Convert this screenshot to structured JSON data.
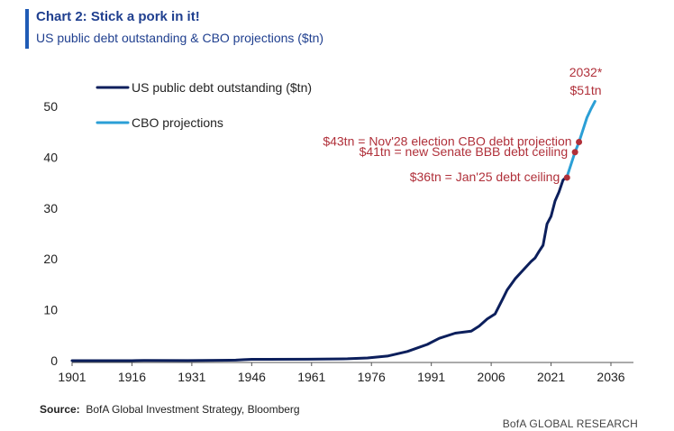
{
  "header": {
    "title": "Chart 2: Stick a pork in it!",
    "subtitle": "US public debt outstanding & CBO projections ($tn)"
  },
  "source": {
    "label": "Source:",
    "text": "BofA Global Investment Strategy, Bloomberg"
  },
  "footer": {
    "brand": "BofA GLOBAL RESEARCH"
  },
  "colors": {
    "actual": "#0c1f5c",
    "projection": "#2b9fd6",
    "annotation": "#b0303a",
    "axis": "#555555",
    "title": "#1f3f8f"
  },
  "chart_data": {
    "type": "line",
    "title": "Chart 2: Stick a pork in it!",
    "subtitle": "US public debt outstanding & CBO projections ($tn)",
    "xlim": [
      1901,
      2048
    ],
    "ylim": [
      0,
      55
    ],
    "x_ticks": [
      1901,
      1916,
      1931,
      1946,
      1961,
      1976,
      1991,
      2006,
      2021,
      2036
    ],
    "y_ticks": [
      0,
      10,
      20,
      30,
      40,
      50
    ],
    "grid": false,
    "legend_position": "top-left",
    "series": [
      {
        "name": "US public debt outstanding ($tn)",
        "color": "#0c1f5c",
        "x": [
          1901,
          1916,
          1917,
          1919,
          1930,
          1942,
          1944,
          1946,
          1950,
          1960,
          1970,
          1975,
          1980,
          1985,
          1990,
          1993,
          1997,
          2001,
          2003,
          2005,
          2007,
          2009,
          2010,
          2012,
          2014,
          2016,
          2017,
          2018,
          2019,
          2020,
          2021,
          2022,
          2023,
          2024,
          2025
        ],
        "y": [
          0.0,
          0.0,
          0.02,
          0.03,
          0.02,
          0.1,
          0.2,
          0.27,
          0.26,
          0.29,
          0.38,
          0.54,
          0.9,
          1.8,
          3.2,
          4.4,
          5.4,
          5.8,
          6.8,
          8.2,
          9.2,
          12.3,
          13.9,
          16.1,
          17.8,
          19.5,
          20.2,
          21.5,
          22.7,
          26.9,
          28.4,
          31.4,
          33.2,
          35.5,
          36.2
        ]
      },
      {
        "name": "CBO projections",
        "color": "#2b9fd6",
        "x": [
          2025,
          2026,
          2027,
          2028,
          2029,
          2030,
          2031,
          2032
        ],
        "y": [
          36.2,
          38.6,
          41.0,
          43.0,
          45.4,
          47.8,
          49.5,
          51.0
        ]
      }
    ],
    "annotations": [
      {
        "text": "$43tn = Nov'28 election CBO debt projection",
        "x": 2028,
        "y": 43
      },
      {
        "text": "$41tn = new Senate BBB debt ceiling",
        "x": 2027,
        "y": 41
      },
      {
        "text": "$36tn = Jan'25 debt ceiling",
        "x": 2025,
        "y": 36
      }
    ],
    "end_label": [
      "2032*",
      "$51tn"
    ]
  }
}
